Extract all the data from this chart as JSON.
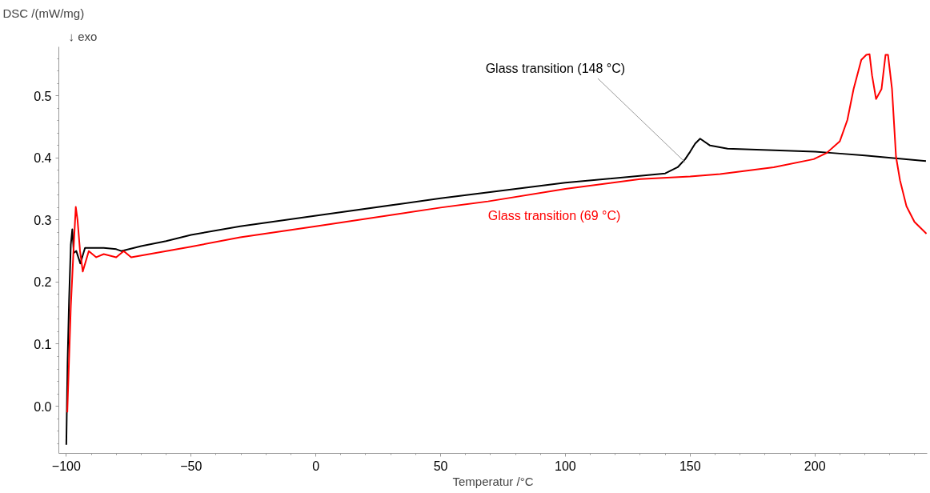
{
  "chart_data": {
    "type": "line",
    "ylabel": "DSC /(mW/mg)",
    "xlabel": "Temperatur /°C",
    "annotations": [
      "↓ exo",
      {
        "text": "Glass transition (148 °C)",
        "x": 148,
        "y": 0.393
      },
      {
        "text": "Glass transition (69 °C)",
        "x": 69,
        "y": 0.33
      }
    ],
    "xlim": [
      -103,
      245
    ],
    "ylim": [
      -0.076,
      0.579
    ],
    "xticks": [
      -100,
      -50,
      0,
      50,
      100,
      150,
      200
    ],
    "yticks": [
      {
        "value": 0,
        "label": "0.0"
      },
      {
        "value": 0.1,
        "label": "0.1"
      },
      {
        "value": 0.2,
        "label": "0.2"
      },
      {
        "value": 0.3,
        "label": "0.3"
      },
      {
        "value": 0.4,
        "label": "0.4"
      },
      {
        "value": 0.5,
        "label": "0.5"
      }
    ],
    "grid": false,
    "line_style": "solid",
    "marker": "none",
    "series": [
      {
        "color": "#000000",
        "x": [
          -100,
          -99.5,
          -98.9,
          -98.2,
          -97.6,
          -97,
          -96,
          -94.4,
          -92.5,
          -90,
          -85,
          -80,
          -78,
          -70,
          -60,
          -50,
          -30.3,
          0,
          50,
          100,
          140,
          145,
          148,
          150,
          152,
          154,
          158,
          165,
          200,
          206.9,
          220,
          244.5
        ],
        "values": [
          -0.062,
          0.07,
          0.17,
          0.26,
          0.285,
          0.247,
          0.25,
          0.23,
          0.255,
          0.255,
          0.255,
          0.253,
          0.25,
          0.258,
          0.266,
          0.276,
          0.29,
          0.307,
          0.335,
          0.36,
          0.375,
          0.385,
          0.398,
          0.41,
          0.423,
          0.431,
          0.42,
          0.415,
          0.41,
          0.408,
          0.404,
          0.395
        ]
      },
      {
        "color": "#ff0000",
        "x": [
          -99.6,
          -98.2,
          -97,
          -96.2,
          -95.5,
          -94.5,
          -93.4,
          -91,
          -88,
          -85,
          -80,
          -77,
          -74,
          -50,
          -30.3,
          0,
          50,
          69,
          100,
          130,
          150,
          162,
          183.5,
          199.5,
          204.7,
          210,
          213,
          215.5,
          218.6,
          220.6,
          221.9,
          222.9,
          224.5,
          226.7,
          228.3,
          229.3,
          230.9,
          232.5,
          234.1,
          236.7,
          239.9,
          244.7
        ],
        "values": [
          -0.01,
          0.16,
          0.26,
          0.321,
          0.3,
          0.25,
          0.217,
          0.25,
          0.24,
          0.245,
          0.24,
          0.25,
          0.24,
          0.257,
          0.272,
          0.29,
          0.32,
          0.33,
          0.35,
          0.366,
          0.37,
          0.374,
          0.385,
          0.398,
          0.408,
          0.427,
          0.461,
          0.511,
          0.558,
          0.566,
          0.567,
          0.533,
          0.495,
          0.511,
          0.566,
          0.566,
          0.511,
          0.402,
          0.364,
          0.322,
          0.297,
          0.278
        ]
      }
    ]
  }
}
